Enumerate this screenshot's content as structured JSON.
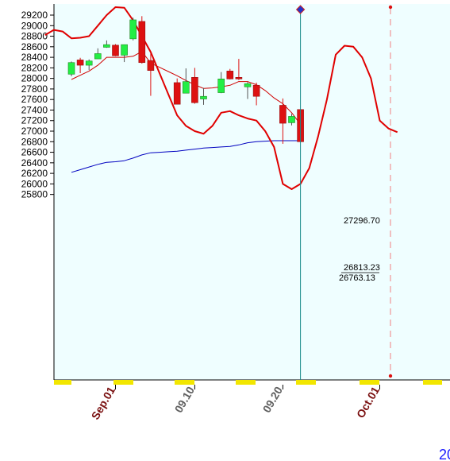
{
  "chart_data": {
    "type": "candlestick",
    "y_ticks": [
      "29200",
      "29000",
      "28800",
      "28600",
      "28400",
      "28200",
      "28000",
      "27800",
      "27600",
      "27400",
      "27200",
      "27000",
      "26800",
      "26600",
      "26400",
      "26200",
      "26000",
      "25800"
    ],
    "ylim": [
      25750,
      29320
    ],
    "x_ticks": [
      {
        "label": "Sep.01",
        "day": 5,
        "color": "#7a1010"
      },
      {
        "label": "09.10",
        "day": 14,
        "color": "#606060"
      },
      {
        "label": "09.20",
        "day": 24,
        "color": "#606060"
      },
      {
        "label": "Oct.01",
        "day": 35,
        "color": "#7a1010"
      }
    ],
    "candles": [
      {
        "day": 0,
        "open": 28080,
        "high": 28320,
        "low": 28040,
        "close": 28300
      },
      {
        "day": 1,
        "open": 28350,
        "high": 28390,
        "low": 28100,
        "close": 28250
      },
      {
        "day": 2,
        "open": 28250,
        "high": 28360,
        "low": 28160,
        "close": 28330
      },
      {
        "day": 3,
        "open": 28370,
        "high": 28570,
        "low": 28370,
        "close": 28470
      },
      {
        "day": 4,
        "open": 28590,
        "high": 28720,
        "low": 28580,
        "close": 28640
      },
      {
        "day": 5,
        "open": 28630,
        "high": 28650,
        "low": 28420,
        "close": 28430
      },
      {
        "day": 6,
        "open": 28440,
        "high": 28640,
        "low": 28310,
        "close": 28640
      },
      {
        "day": 7,
        "open": 28750,
        "high": 29150,
        "low": 28720,
        "close": 29110
      },
      {
        "day": 8,
        "open": 29080,
        "high": 29180,
        "low": 28280,
        "close": 28300
      },
      {
        "day": 9,
        "open": 28340,
        "high": 28480,
        "low": 27670,
        "close": 28150
      },
      {
        "day": 12,
        "open": 27920,
        "high": 28000,
        "low": 27510,
        "close": 27510
      },
      {
        "day": 13,
        "open": 27720,
        "high": 28190,
        "low": 27720,
        "close": 27940
      },
      {
        "day": 14,
        "open": 28020,
        "high": 28200,
        "low": 27520,
        "close": 27540
      },
      {
        "day": 15,
        "open": 27610,
        "high": 27820,
        "low": 27500,
        "close": 27660
      },
      {
        "day": 17,
        "open": 27730,
        "high": 28120,
        "low": 27720,
        "close": 27990
      },
      {
        "day": 18,
        "open": 28140,
        "high": 28180,
        "low": 27980,
        "close": 27990
      },
      {
        "day": 19,
        "open": 28020,
        "high": 28370,
        "low": 27970,
        "close": 27990
      },
      {
        "day": 20,
        "open": 27840,
        "high": 27930,
        "low": 27610,
        "close": 27900
      },
      {
        "day": 21,
        "open": 27870,
        "high": 27920,
        "low": 27490,
        "close": 27660
      },
      {
        "day": 24,
        "open": 27490,
        "high": 27620,
        "low": 26760,
        "close": 27150
      },
      {
        "day": 25,
        "open": 27160,
        "high": 27330,
        "low": 27110,
        "close": 27280
      },
      {
        "day": 26,
        "open": 27410,
        "high": 27420,
        "low": 26790,
        "close": 26800
      }
    ],
    "series": [
      {
        "key": "ma-thin",
        "color": "#d00000",
        "width": 1,
        "points": [
          [
            0,
            27980
          ],
          [
            1,
            28060
          ],
          [
            2,
            28140
          ],
          [
            3,
            28250
          ],
          [
            4,
            28400
          ],
          [
            5,
            28400
          ],
          [
            6,
            28400
          ],
          [
            7,
            28420
          ],
          [
            8,
            28510
          ],
          [
            9,
            28290
          ],
          [
            10,
            28210
          ],
          [
            11,
            28130
          ],
          [
            12,
            28050
          ],
          [
            13,
            27960
          ],
          [
            14,
            27880
          ],
          [
            15,
            27810
          ],
          [
            16,
            27820
          ],
          [
            17,
            27840
          ],
          [
            18,
            27870
          ],
          [
            19,
            27940
          ],
          [
            20,
            27940
          ],
          [
            21,
            27880
          ],
          [
            22,
            27770
          ],
          [
            23,
            27630
          ],
          [
            24,
            27520
          ],
          [
            25,
            27350
          ],
          [
            26,
            27130
          ]
        ]
      },
      {
        "key": "ma-blue",
        "color": "#0000c0",
        "width": 1,
        "points": [
          [
            0,
            26220
          ],
          [
            1,
            26270
          ],
          [
            2,
            26320
          ],
          [
            3,
            26370
          ],
          [
            4,
            26410
          ],
          [
            5,
            26420
          ],
          [
            6,
            26440
          ],
          [
            7,
            26490
          ],
          [
            8,
            26550
          ],
          [
            9,
            26590
          ],
          [
            10,
            26600
          ],
          [
            11,
            26610
          ],
          [
            12,
            26620
          ],
          [
            13,
            26640
          ],
          [
            14,
            26660
          ],
          [
            15,
            26680
          ],
          [
            16,
            26690
          ],
          [
            17,
            26700
          ],
          [
            18,
            26710
          ],
          [
            19,
            26740
          ],
          [
            20,
            26780
          ],
          [
            21,
            26800
          ],
          [
            22,
            26810
          ],
          [
            23,
            26820
          ],
          [
            24,
            26820
          ],
          [
            25,
            26820
          ],
          [
            26,
            26820
          ]
        ]
      },
      {
        "key": "envelope",
        "color": "#e00000",
        "width": 2,
        "points": [
          [
            -3,
            28820
          ],
          [
            -2,
            28920
          ],
          [
            -1,
            28890
          ],
          [
            0,
            28760
          ],
          [
            1,
            28770
          ],
          [
            2,
            28800
          ],
          [
            3,
            29000
          ],
          [
            4,
            29200
          ],
          [
            5,
            29350
          ],
          [
            6,
            29340
          ],
          [
            7,
            29100
          ],
          [
            8,
            28800
          ],
          [
            9,
            28500
          ],
          [
            10,
            28100
          ],
          [
            11,
            27700
          ],
          [
            12,
            27300
          ],
          [
            13,
            27100
          ],
          [
            14,
            27000
          ],
          [
            15,
            26950
          ],
          [
            16,
            27100
          ],
          [
            17,
            27350
          ],
          [
            18,
            27380
          ],
          [
            19,
            27300
          ],
          [
            20,
            27240
          ],
          [
            21,
            27200
          ],
          [
            22,
            27000
          ],
          [
            23,
            26700
          ],
          [
            24,
            26000
          ],
          [
            25,
            25900
          ],
          [
            26,
            26000
          ],
          [
            27,
            26300
          ],
          [
            28,
            26900
          ],
          [
            29,
            27600
          ],
          [
            30,
            28450
          ],
          [
            31,
            28620
          ],
          [
            32,
            28600
          ],
          [
            33,
            28400
          ],
          [
            34,
            28000
          ],
          [
            35,
            27200
          ],
          [
            36,
            27050
          ],
          [
            37,
            26980
          ]
        ]
      }
    ],
    "value_labels": [
      "27296.70",
      "26813.23",
      "26763.13"
    ],
    "corner_text": "20",
    "colors": {
      "up": "#22ee44",
      "down": "#dd1111",
      "plot_bg": "#effeff",
      "cursor": "#1a8a8a",
      "future_line": "#f08080"
    }
  }
}
